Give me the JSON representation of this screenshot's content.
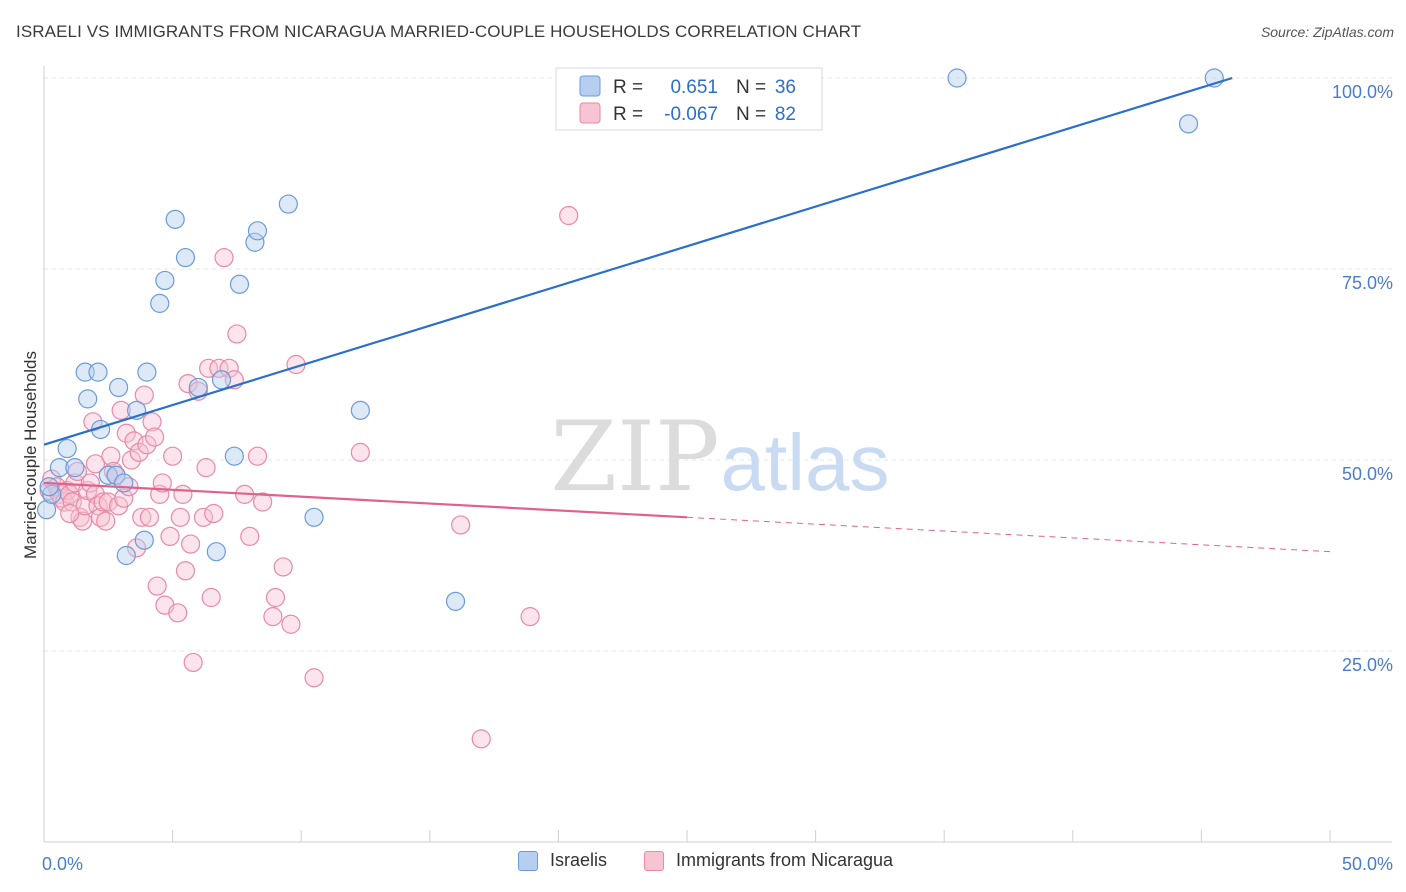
{
  "title": "ISRAELI VS IMMIGRANTS FROM NICARAGUA MARRIED-COUPLE HOUSEHOLDS CORRELATION CHART",
  "source": "Source: ZipAtlas.com",
  "watermark": {
    "zip": "ZIP",
    "atlas": "atlas"
  },
  "legend_top": [
    {
      "r_label": "R =",
      "r_value": "0.651",
      "n_label": "N =",
      "n_value": "36"
    },
    {
      "r_label": "R =",
      "r_value": "-0.067",
      "n_label": "N =",
      "n_value": "82"
    }
  ],
  "legend_bottom": [
    {
      "label": "Israelis"
    },
    {
      "label": "Immigrants from Nicaragua"
    }
  ],
  "colors": {
    "blue_fill": "#b6cff0",
    "blue_stroke": "#6b9bd8",
    "blue_line": "#2a6fca",
    "pink_fill": "#f7c4d3",
    "pink_stroke": "#e889a8",
    "pink_line": "#e0628c",
    "tick_text": "#4a7cc9",
    "grid": "#e4e4e4"
  },
  "chart_data": {
    "type": "scatter",
    "title": "ISRAELI VS IMMIGRANTS FROM NICARAGUA MARRIED-COUPLE HOUSEHOLDS CORRELATION CHART",
    "xlabel": "",
    "ylabel": "Married-couple Households",
    "xlim": [
      0,
      50
    ],
    "ylim": [
      0,
      100
    ],
    "x_tick_labels": [
      "0.0%",
      "50.0%"
    ],
    "y_ticks": [
      {
        "value": 100,
        "label": "100.0%"
      },
      {
        "value": 75,
        "label": "75.0%"
      },
      {
        "value": 50,
        "label": "50.0%"
      },
      {
        "value": 25,
        "label": "25.0%"
      }
    ],
    "grid": true,
    "legend_placement": "top-center",
    "series": [
      {
        "name": "Israelis",
        "color": "#6b9bd8",
        "points": [
          [
            0.1,
            43.5
          ],
          [
            0.3,
            45.5
          ],
          [
            0.6,
            49.0
          ],
          [
            0.9,
            51.5
          ],
          [
            1.2,
            49.0
          ],
          [
            1.6,
            61.5
          ],
          [
            1.7,
            58.0
          ],
          [
            2.1,
            61.5
          ],
          [
            2.2,
            54.0
          ],
          [
            2.5,
            48.0
          ],
          [
            2.8,
            48.0
          ],
          [
            2.9,
            59.5
          ],
          [
            3.1,
            47.0
          ],
          [
            3.2,
            37.5
          ],
          [
            3.6,
            56.5
          ],
          [
            3.9,
            39.5
          ],
          [
            4.0,
            61.5
          ],
          [
            4.5,
            70.5
          ],
          [
            4.7,
            73.5
          ],
          [
            5.1,
            81.5
          ],
          [
            5.5,
            76.5
          ],
          [
            6.0,
            59.5
          ],
          [
            6.7,
            38.0
          ],
          [
            6.9,
            60.5
          ],
          [
            7.4,
            50.5
          ],
          [
            7.6,
            73.0
          ],
          [
            8.2,
            78.5
          ],
          [
            8.3,
            80.0
          ],
          [
            9.5,
            83.5
          ],
          [
            10.5,
            42.5
          ],
          [
            12.3,
            56.5
          ],
          [
            16.0,
            31.5
          ],
          [
            35.5,
            100.0
          ],
          [
            44.5,
            94.0
          ],
          [
            45.5,
            100.0
          ],
          [
            0.2,
            46.5
          ]
        ]
      },
      {
        "name": "Immigrants from Nicaragua",
        "color": "#e889a8",
        "points": [
          [
            0.2,
            46.0
          ],
          [
            0.3,
            47.5
          ],
          [
            0.5,
            46.5
          ],
          [
            0.6,
            45.5
          ],
          [
            0.7,
            45.0
          ],
          [
            0.8,
            44.5
          ],
          [
            0.9,
            46.0
          ],
          [
            1.0,
            45.5
          ],
          [
            1.1,
            44.5
          ],
          [
            1.2,
            47.0
          ],
          [
            1.3,
            48.5
          ],
          [
            1.4,
            42.5
          ],
          [
            1.5,
            42.0
          ],
          [
            1.6,
            44.0
          ],
          [
            1.7,
            46.0
          ],
          [
            1.8,
            47.0
          ],
          [
            1.9,
            55.0
          ],
          [
            2.0,
            45.5
          ],
          [
            2.1,
            44.0
          ],
          [
            2.2,
            42.5
          ],
          [
            2.3,
            44.5
          ],
          [
            2.4,
            42.0
          ],
          [
            2.5,
            44.5
          ],
          [
            2.6,
            50.5
          ],
          [
            2.7,
            48.5
          ],
          [
            2.8,
            48.0
          ],
          [
            2.9,
            44.0
          ],
          [
            3.0,
            56.5
          ],
          [
            3.1,
            45.0
          ],
          [
            3.2,
            53.5
          ],
          [
            3.3,
            46.5
          ],
          [
            3.4,
            50.0
          ],
          [
            3.5,
            52.5
          ],
          [
            3.6,
            38.5
          ],
          [
            3.7,
            51.0
          ],
          [
            3.8,
            42.5
          ],
          [
            3.9,
            58.5
          ],
          [
            4.0,
            52.0
          ],
          [
            4.1,
            42.5
          ],
          [
            4.2,
            55.0
          ],
          [
            4.3,
            53.0
          ],
          [
            4.4,
            33.5
          ],
          [
            4.5,
            45.5
          ],
          [
            4.6,
            47.0
          ],
          [
            4.7,
            31.0
          ],
          [
            4.9,
            40.0
          ],
          [
            5.0,
            50.5
          ],
          [
            5.2,
            30.0
          ],
          [
            5.3,
            42.5
          ],
          [
            5.4,
            45.5
          ],
          [
            5.5,
            35.5
          ],
          [
            5.6,
            60.0
          ],
          [
            5.7,
            39.0
          ],
          [
            5.8,
            23.5
          ],
          [
            6.0,
            59.0
          ],
          [
            6.2,
            42.5
          ],
          [
            6.3,
            49.0
          ],
          [
            6.4,
            62.0
          ],
          [
            6.5,
            32.0
          ],
          [
            6.6,
            43.0
          ],
          [
            6.8,
            62.0
          ],
          [
            7.0,
            76.5
          ],
          [
            7.2,
            62.0
          ],
          [
            7.4,
            60.5
          ],
          [
            7.5,
            66.5
          ],
          [
            7.8,
            45.5
          ],
          [
            8.0,
            40.0
          ],
          [
            8.3,
            50.5
          ],
          [
            8.5,
            44.5
          ],
          [
            8.9,
            29.5
          ],
          [
            9.0,
            32.0
          ],
          [
            9.3,
            36.0
          ],
          [
            9.6,
            28.5
          ],
          [
            9.8,
            62.5
          ],
          [
            10.5,
            21.5
          ],
          [
            12.3,
            51.0
          ],
          [
            16.2,
            41.5
          ],
          [
            17.0,
            13.5
          ],
          [
            18.9,
            29.5
          ],
          [
            20.4,
            82.0
          ],
          [
            1.0,
            43.0
          ],
          [
            2.0,
            49.5
          ]
        ]
      }
    ],
    "trend_lines": [
      {
        "series": "Israelis",
        "x1": 0,
        "y1": 52.0,
        "x2": 46.2,
        "y2": 100.0,
        "style": "solid"
      },
      {
        "series": "Immigrants from Nicaragua",
        "x1": 0,
        "y1": 47.0,
        "x2": 25.0,
        "y2": 42.5,
        "style": "solid"
      },
      {
        "series": "Immigrants from Nicaragua",
        "x1": 25.0,
        "y1": 42.5,
        "x2": 50.0,
        "y2": 38.0,
        "style": "dashed"
      }
    ]
  }
}
